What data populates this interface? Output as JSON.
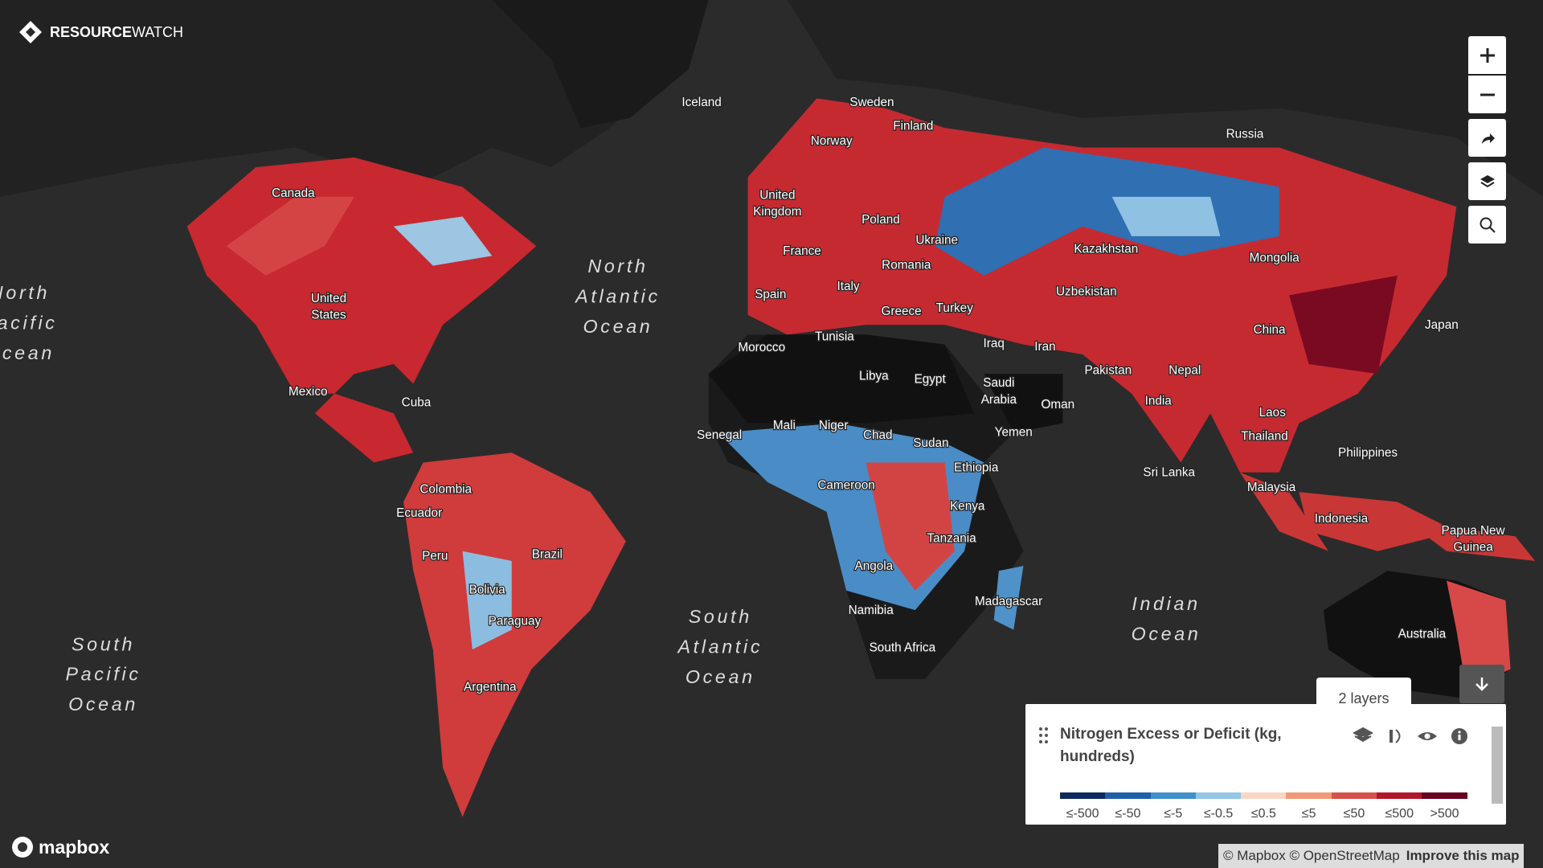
{
  "header": {
    "brand_bold": "RESOURCE",
    "brand_light": "WATCH"
  },
  "map_labels": {
    "countries": [
      [
        "Iceland"
      ],
      [
        "Sweden"
      ],
      [
        "Finland"
      ],
      [
        "Norway"
      ],
      [
        "Russia"
      ],
      [
        "Canada"
      ],
      [
        "United",
        "Kingdom"
      ],
      [
        "Poland"
      ],
      [
        "Ukraine"
      ],
      [
        "Kazakhstan"
      ],
      [
        "Mongolia"
      ],
      [
        "France"
      ],
      [
        "Romania"
      ],
      [
        "Uzbekistan"
      ],
      [
        "Spain"
      ],
      [
        "Italy"
      ],
      [
        "Greece"
      ],
      [
        "Turkey"
      ],
      [
        "China"
      ],
      [
        "Japan"
      ],
      [
        "United",
        "States"
      ],
      [
        "Morocco"
      ],
      [
        "Tunisia"
      ],
      [
        "Iraq"
      ],
      [
        "Iran"
      ],
      [
        "Pakistan"
      ],
      [
        "Nepal"
      ],
      [
        "Libya"
      ],
      [
        "Egypt"
      ],
      [
        "Saudi",
        "Arabia"
      ],
      [
        "Oman"
      ],
      [
        "India"
      ],
      [
        "Mexico"
      ],
      [
        "Cuba"
      ],
      [
        "Laos"
      ],
      [
        "Yemen"
      ],
      [
        "Thailand"
      ],
      [
        "Senegal"
      ],
      [
        "Mali"
      ],
      [
        "Niger"
      ],
      [
        "Chad"
      ],
      [
        "Sudan"
      ],
      [
        "Philippines"
      ],
      [
        "Sri Lanka"
      ],
      [
        "Ethiopia"
      ],
      [
        "Malaysia"
      ],
      [
        "Cameroon"
      ],
      [
        "Colombia"
      ],
      [
        "Ecuador"
      ],
      [
        "Kenya"
      ],
      [
        "Indonesia"
      ],
      [
        "Papua New",
        "Guinea"
      ],
      [
        "Tanzania"
      ],
      [
        "Peru"
      ],
      [
        "Brazil"
      ],
      [
        "Angola"
      ],
      [
        "Bolivia"
      ],
      [
        "Madagascar"
      ],
      [
        "Namibia"
      ],
      [
        "Paraguay"
      ],
      [
        "Australia"
      ],
      [
        "South Africa"
      ],
      [
        "Argentina"
      ]
    ],
    "oceans": [
      [
        "North",
        "Pacific",
        "Ocean"
      ],
      [
        "North",
        "Atlantic",
        "Ocean"
      ],
      [
        "South",
        "Atlantic",
        "Ocean"
      ],
      [
        "Indian",
        "Ocean"
      ],
      [
        "South",
        "Pacific",
        "Ocean"
      ]
    ]
  },
  "legend": {
    "tooltip": "2 layers",
    "title": "Nitrogen Excess or Deficit (kg, hundreds)",
    "items": [
      {
        "label": "≤-500",
        "color": "#0b2a5b"
      },
      {
        "label": "≤-50",
        "color": "#1f5fa6"
      },
      {
        "label": "≤-5",
        "color": "#4190c8"
      },
      {
        "label": "≤-0.5",
        "color": "#93c6e4"
      },
      {
        "label": "≤0.5",
        "color": "#f9d7c4"
      },
      {
        "label": "≤5",
        "color": "#ee9a78"
      },
      {
        "label": "≤50",
        "color": "#d6514a"
      },
      {
        "label": "≤500",
        "color": "#b1172b"
      },
      {
        "label": ">500",
        "color": "#67001f"
      }
    ]
  },
  "footer": {
    "logo": "mapbox",
    "attribution": "© Mapbox © OpenStreetMap",
    "improve": "Improve this map"
  }
}
